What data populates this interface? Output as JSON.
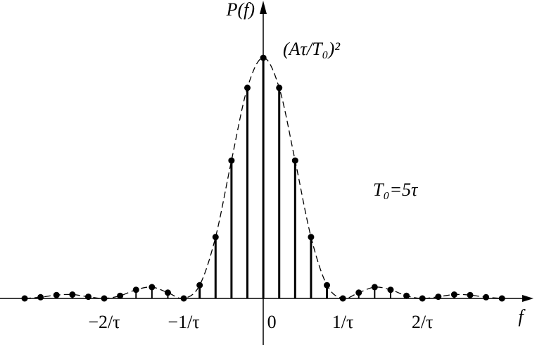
{
  "chart_data": {
    "type": "stem",
    "y_label": "P(f)",
    "x_label": "f",
    "annotations": [
      "(Aτ/T₀)²",
      "T₀=5τ"
    ],
    "x": [
      -3,
      -2.8,
      -2.6,
      -2.4,
      -2.2,
      -2,
      -1.8,
      -1.6,
      -1.4,
      -1.2,
      -1,
      -0.8,
      -0.6,
      -0.4,
      -0.2,
      0,
      0.2,
      0.4,
      0.6,
      0.8,
      1,
      1.2,
      1.4,
      1.6,
      1.8,
      2,
      2.2,
      2.4,
      2.6,
      2.8,
      3
    ],
    "values": [
      0,
      0.005,
      0.014,
      0.016,
      0.007,
      0,
      0.011,
      0.036,
      0.047,
      0.024,
      0,
      0.055,
      0.255,
      0.573,
      0.875,
      1,
      0.875,
      0.573,
      0.255,
      0.055,
      0,
      0.024,
      0.047,
      0.036,
      0.011,
      0,
      0.007,
      0.016,
      0.014,
      0.005,
      0
    ],
    "color": "#000000",
    "xlim": [
      -3.31,
      3.37
    ],
    "ylim": [
      0,
      1.24
    ],
    "xticks": [
      {
        "value": -2,
        "label": "−2/τ"
      },
      {
        "value": -1,
        "label": "−1/τ"
      },
      0,
      {
        "value": 1,
        "label": "1/τ"
      },
      {
        "value": 2,
        "label": "2/τ"
      }
    ]
  }
}
